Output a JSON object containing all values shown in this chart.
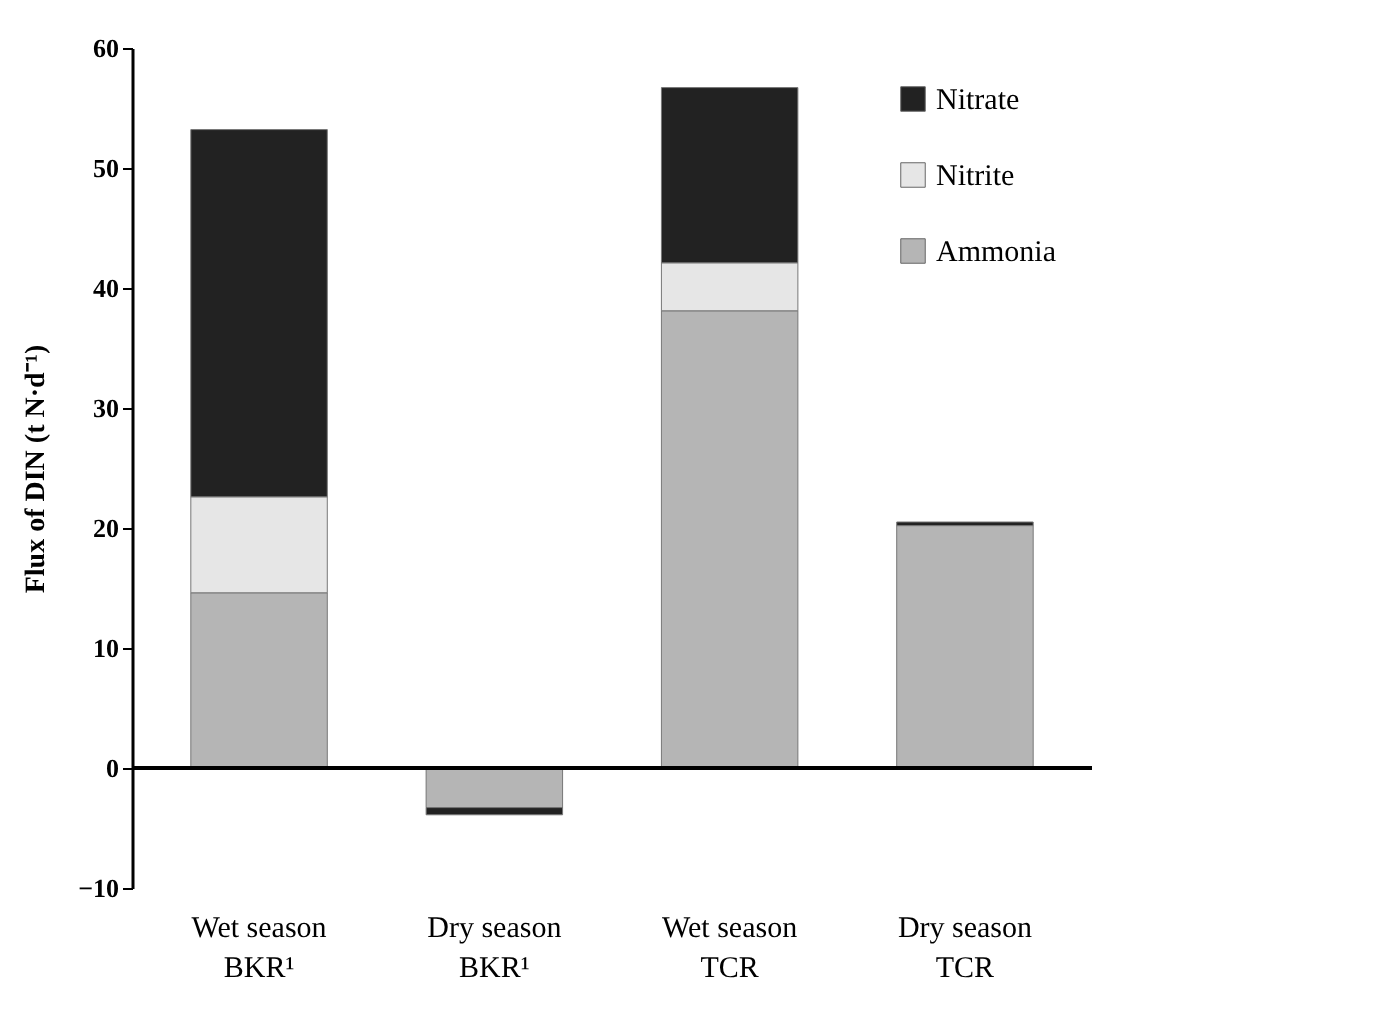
{
  "chart_data": {
    "type": "bar",
    "stacked": true,
    "ylabel": "Flux of DIN (t N·d⁻¹)",
    "categories": [
      "Wet season BKR¹",
      "Dry season BKR¹",
      "Wet season TCR",
      "Dry season TCR"
    ],
    "series": [
      {
        "name": "Ammonia",
        "color": "#b5b5b5",
        "values": [
          14.6,
          -3.3,
          38.1,
          20.2
        ]
      },
      {
        "name": "Nitrite",
        "color": "#e6e6e6",
        "values": [
          8.0,
          null,
          4.0,
          null
        ]
      },
      {
        "name": "Nitrate",
        "color": "#222222",
        "values": [
          30.6,
          -0.6,
          14.6,
          0.3
        ]
      }
    ],
    "ylim": [
      -10,
      60
    ],
    "yticks": [
      -10,
      0,
      10,
      20,
      30,
      40,
      50,
      60
    ],
    "ref_lines": [
      {
        "axis": "y",
        "value": 0,
        "color": "#000000"
      }
    ],
    "legend": "top right",
    "grid": false
  }
}
